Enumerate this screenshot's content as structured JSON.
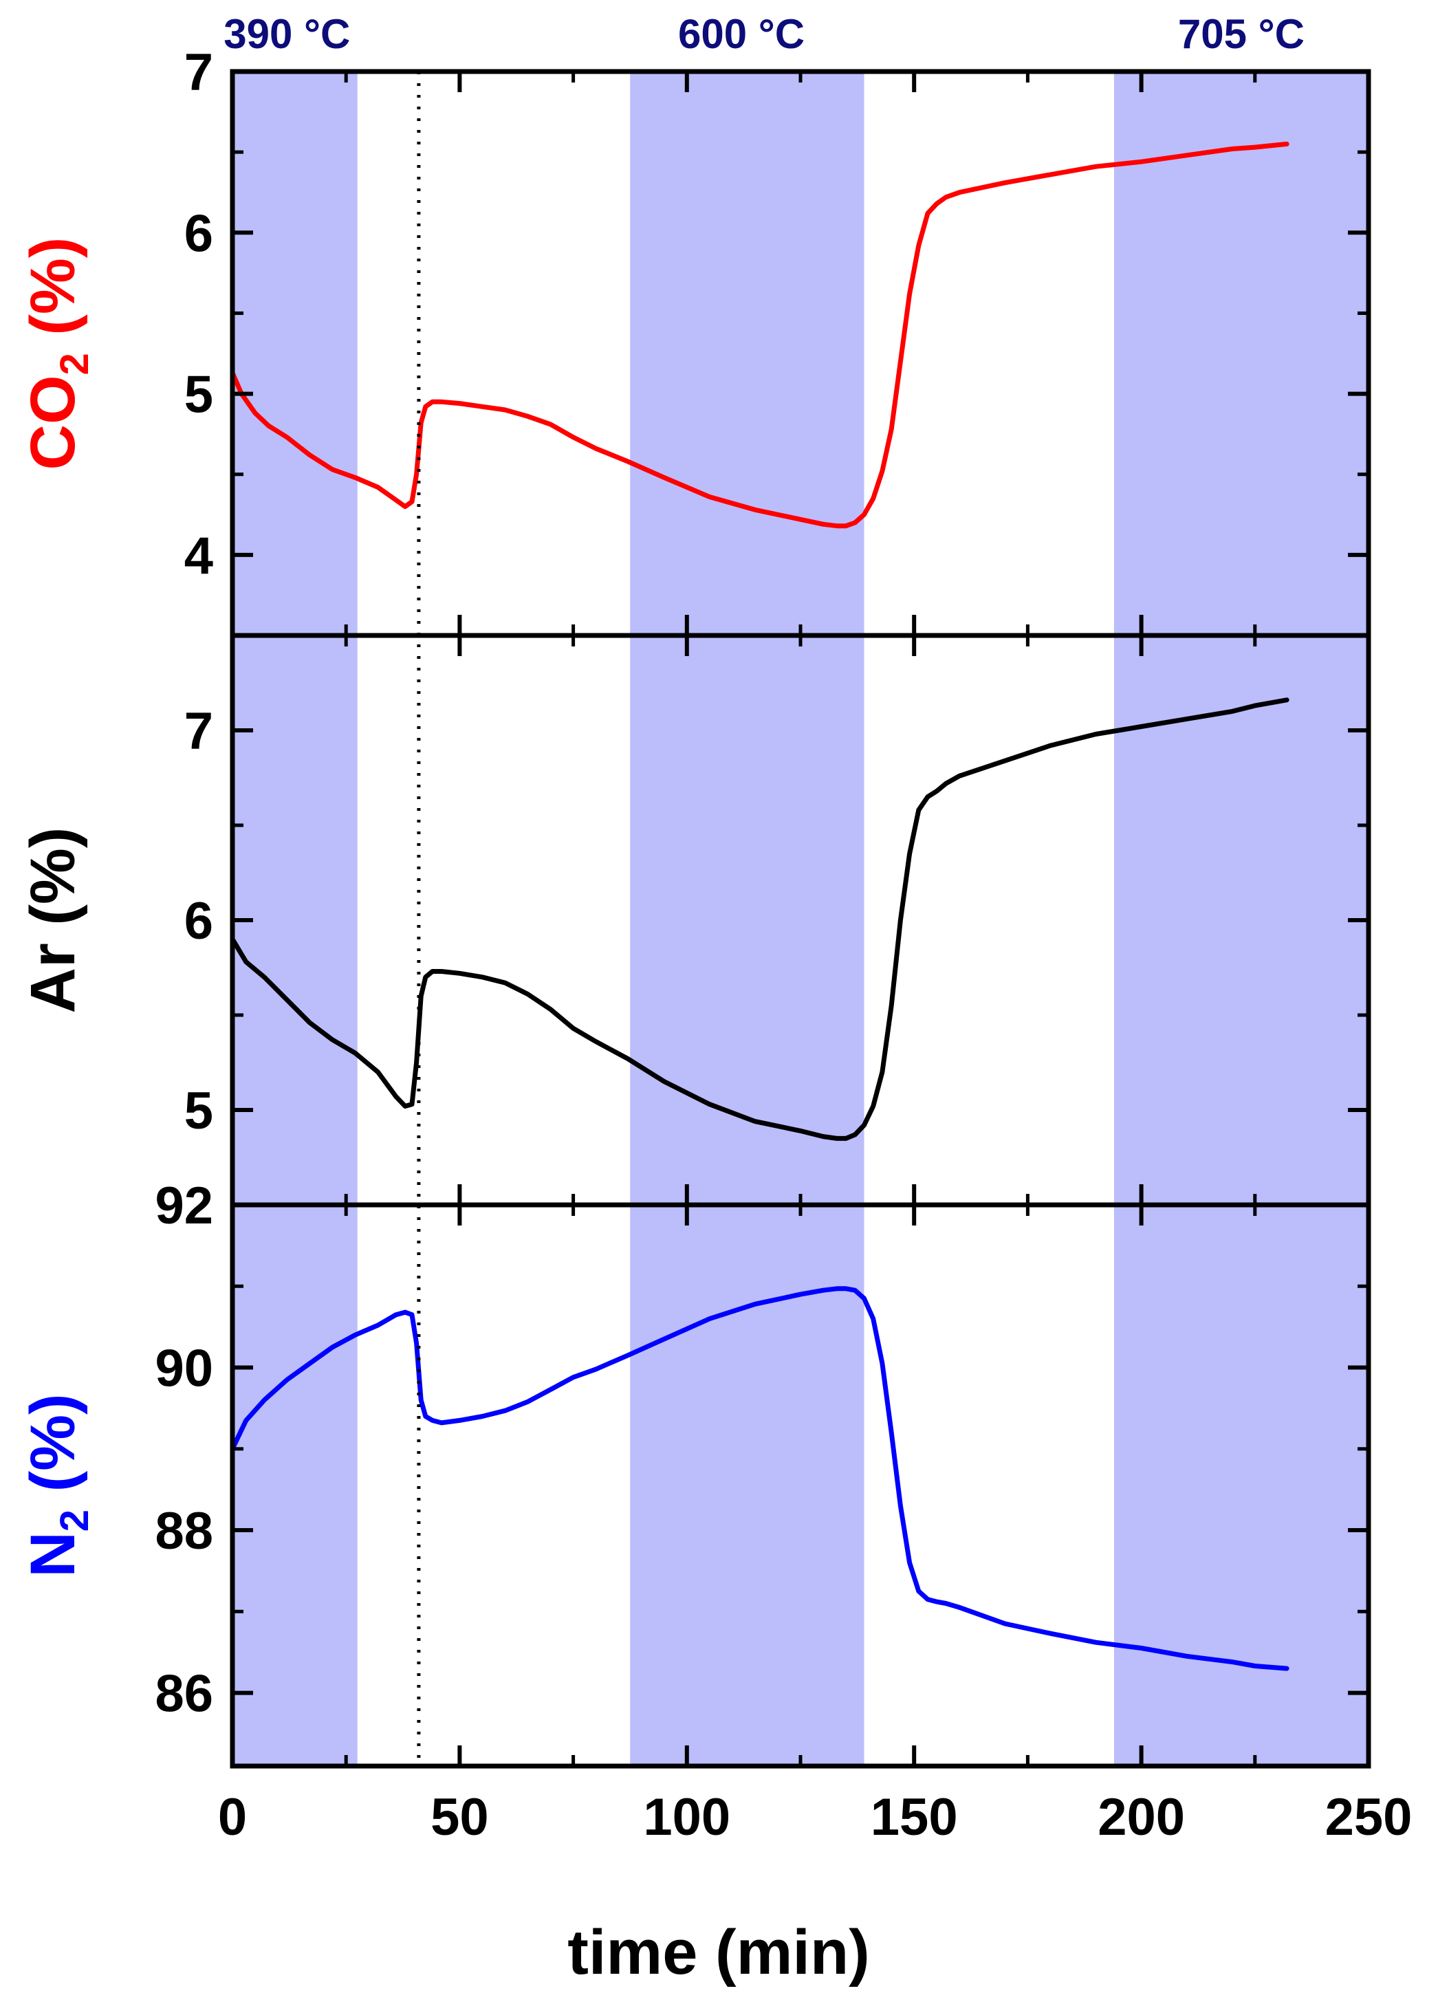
{
  "chart_data": {
    "type": "line",
    "xlabel": "time (min)",
    "xlim": [
      0,
      250
    ],
    "x_ticks": [
      0,
      50,
      100,
      150,
      200,
      250
    ],
    "x_tick_labels": [
      "0",
      "50",
      "100",
      "150",
      "200",
      "250"
    ],
    "shaded_intervals_min": [
      [
        0,
        27.5
      ],
      [
        87.5,
        139
      ],
      [
        194,
        250
      ]
    ],
    "shade_color": "#bcbdfb",
    "vertical_dotted_line_x": 41,
    "temperature_labels": [
      {
        "text": "390 °C",
        "x": 12
      },
      {
        "text": "600 °C",
        "x": 112
      },
      {
        "text": "705 °C",
        "x": 222
      }
    ],
    "temperature_label_color": "#0d0d7a",
    "panels": [
      {
        "id": "co2",
        "ylabel_main": "CO",
        "ylabel_sub": "2",
        "ylabel_rest": " (%)",
        "ylabel_color": "#ff0000",
        "series_color": "#ff0000",
        "ylim": [
          3.5,
          7.0
        ],
        "y_ticks": [
          4,
          5,
          6,
          7
        ],
        "y_tick_labels": [
          "4",
          "5",
          "6",
          "7"
        ],
        "x": [
          0,
          2,
          5,
          8,
          12,
          17,
          22,
          27,
          32,
          36,
          38,
          39.5,
          40.5,
          41.5,
          42.5,
          44,
          46,
          50,
          55,
          60,
          65,
          70,
          75,
          80,
          87,
          95,
          105,
          115,
          125,
          130,
          133,
          135,
          137,
          139,
          141,
          143,
          145,
          147,
          149,
          151,
          153,
          155,
          157,
          160,
          170,
          180,
          190,
          200,
          210,
          220,
          225,
          232
        ],
        "y": [
          5.13,
          5.0,
          4.88,
          4.8,
          4.73,
          4.62,
          4.53,
          4.48,
          4.42,
          4.34,
          4.3,
          4.33,
          4.5,
          4.82,
          4.92,
          4.95,
          4.95,
          4.94,
          4.92,
          4.9,
          4.86,
          4.81,
          4.73,
          4.66,
          4.58,
          4.48,
          4.36,
          4.28,
          4.22,
          4.19,
          4.18,
          4.18,
          4.2,
          4.25,
          4.35,
          4.52,
          4.78,
          5.2,
          5.62,
          5.92,
          6.12,
          6.18,
          6.22,
          6.25,
          6.31,
          6.36,
          6.41,
          6.44,
          6.48,
          6.52,
          6.53,
          6.55
        ]
      },
      {
        "id": "ar",
        "ylabel_main": "Ar",
        "ylabel_sub": "",
        "ylabel_rest": " (%)",
        "ylabel_color": "#000000",
        "series_color": "#000000",
        "ylim": [
          4.5,
          7.5
        ],
        "y_ticks": [
          5,
          6,
          7
        ],
        "y_tick_labels": [
          "5",
          "6",
          "7"
        ],
        "x": [
          0,
          3,
          7,
          12,
          17,
          22,
          27,
          32,
          36,
          38,
          39.5,
          40.5,
          41.5,
          42.5,
          44,
          46,
          50,
          55,
          60,
          65,
          70,
          75,
          80,
          87,
          95,
          105,
          115,
          125,
          130,
          133,
          135,
          137,
          139,
          141,
          143,
          145,
          147,
          149,
          151,
          153,
          155,
          157,
          160,
          170,
          180,
          190,
          200,
          210,
          220,
          225,
          232
        ],
        "y": [
          5.9,
          5.78,
          5.7,
          5.58,
          5.46,
          5.37,
          5.3,
          5.2,
          5.07,
          5.02,
          5.03,
          5.25,
          5.6,
          5.7,
          5.73,
          5.73,
          5.72,
          5.7,
          5.67,
          5.61,
          5.53,
          5.43,
          5.36,
          5.27,
          5.15,
          5.03,
          4.94,
          4.89,
          4.86,
          4.85,
          4.85,
          4.87,
          4.92,
          5.02,
          5.2,
          5.55,
          6.0,
          6.35,
          6.58,
          6.65,
          6.68,
          6.72,
          6.76,
          6.84,
          6.92,
          6.98,
          7.02,
          7.06,
          7.1,
          7.13,
          7.16
        ]
      },
      {
        "id": "n2",
        "ylabel_main": "N",
        "ylabel_sub": "2",
        "ylabel_rest": " (%)",
        "ylabel_color": "#0000ff",
        "series_color": "#0000ff",
        "ylim": [
          85.1,
          92.0
        ],
        "y_ticks": [
          86,
          88,
          90,
          92
        ],
        "y_tick_labels": [
          "86",
          "88",
          "90",
          "92"
        ],
        "x": [
          0,
          3,
          7,
          12,
          17,
          22,
          27,
          32,
          36,
          38,
          39.5,
          40.5,
          41.5,
          42.5,
          44,
          46,
          50,
          55,
          60,
          65,
          70,
          75,
          80,
          87,
          95,
          105,
          115,
          125,
          130,
          133,
          135,
          137,
          139,
          141,
          143,
          145,
          147,
          149,
          151,
          153,
          155,
          157,
          160,
          170,
          180,
          190,
          200,
          210,
          220,
          225,
          232
        ],
        "y": [
          89.0,
          89.35,
          89.6,
          89.85,
          90.05,
          90.25,
          90.4,
          90.52,
          90.65,
          90.68,
          90.65,
          90.3,
          89.6,
          89.4,
          89.35,
          89.32,
          89.35,
          89.4,
          89.47,
          89.58,
          89.73,
          89.88,
          89.98,
          90.15,
          90.35,
          90.6,
          90.78,
          90.9,
          90.95,
          90.97,
          90.97,
          90.95,
          90.85,
          90.6,
          90.05,
          89.2,
          88.3,
          87.6,
          87.25,
          87.15,
          87.12,
          87.1,
          87.05,
          86.85,
          86.73,
          86.62,
          86.55,
          86.45,
          86.38,
          86.33,
          86.3
        ]
      }
    ]
  }
}
